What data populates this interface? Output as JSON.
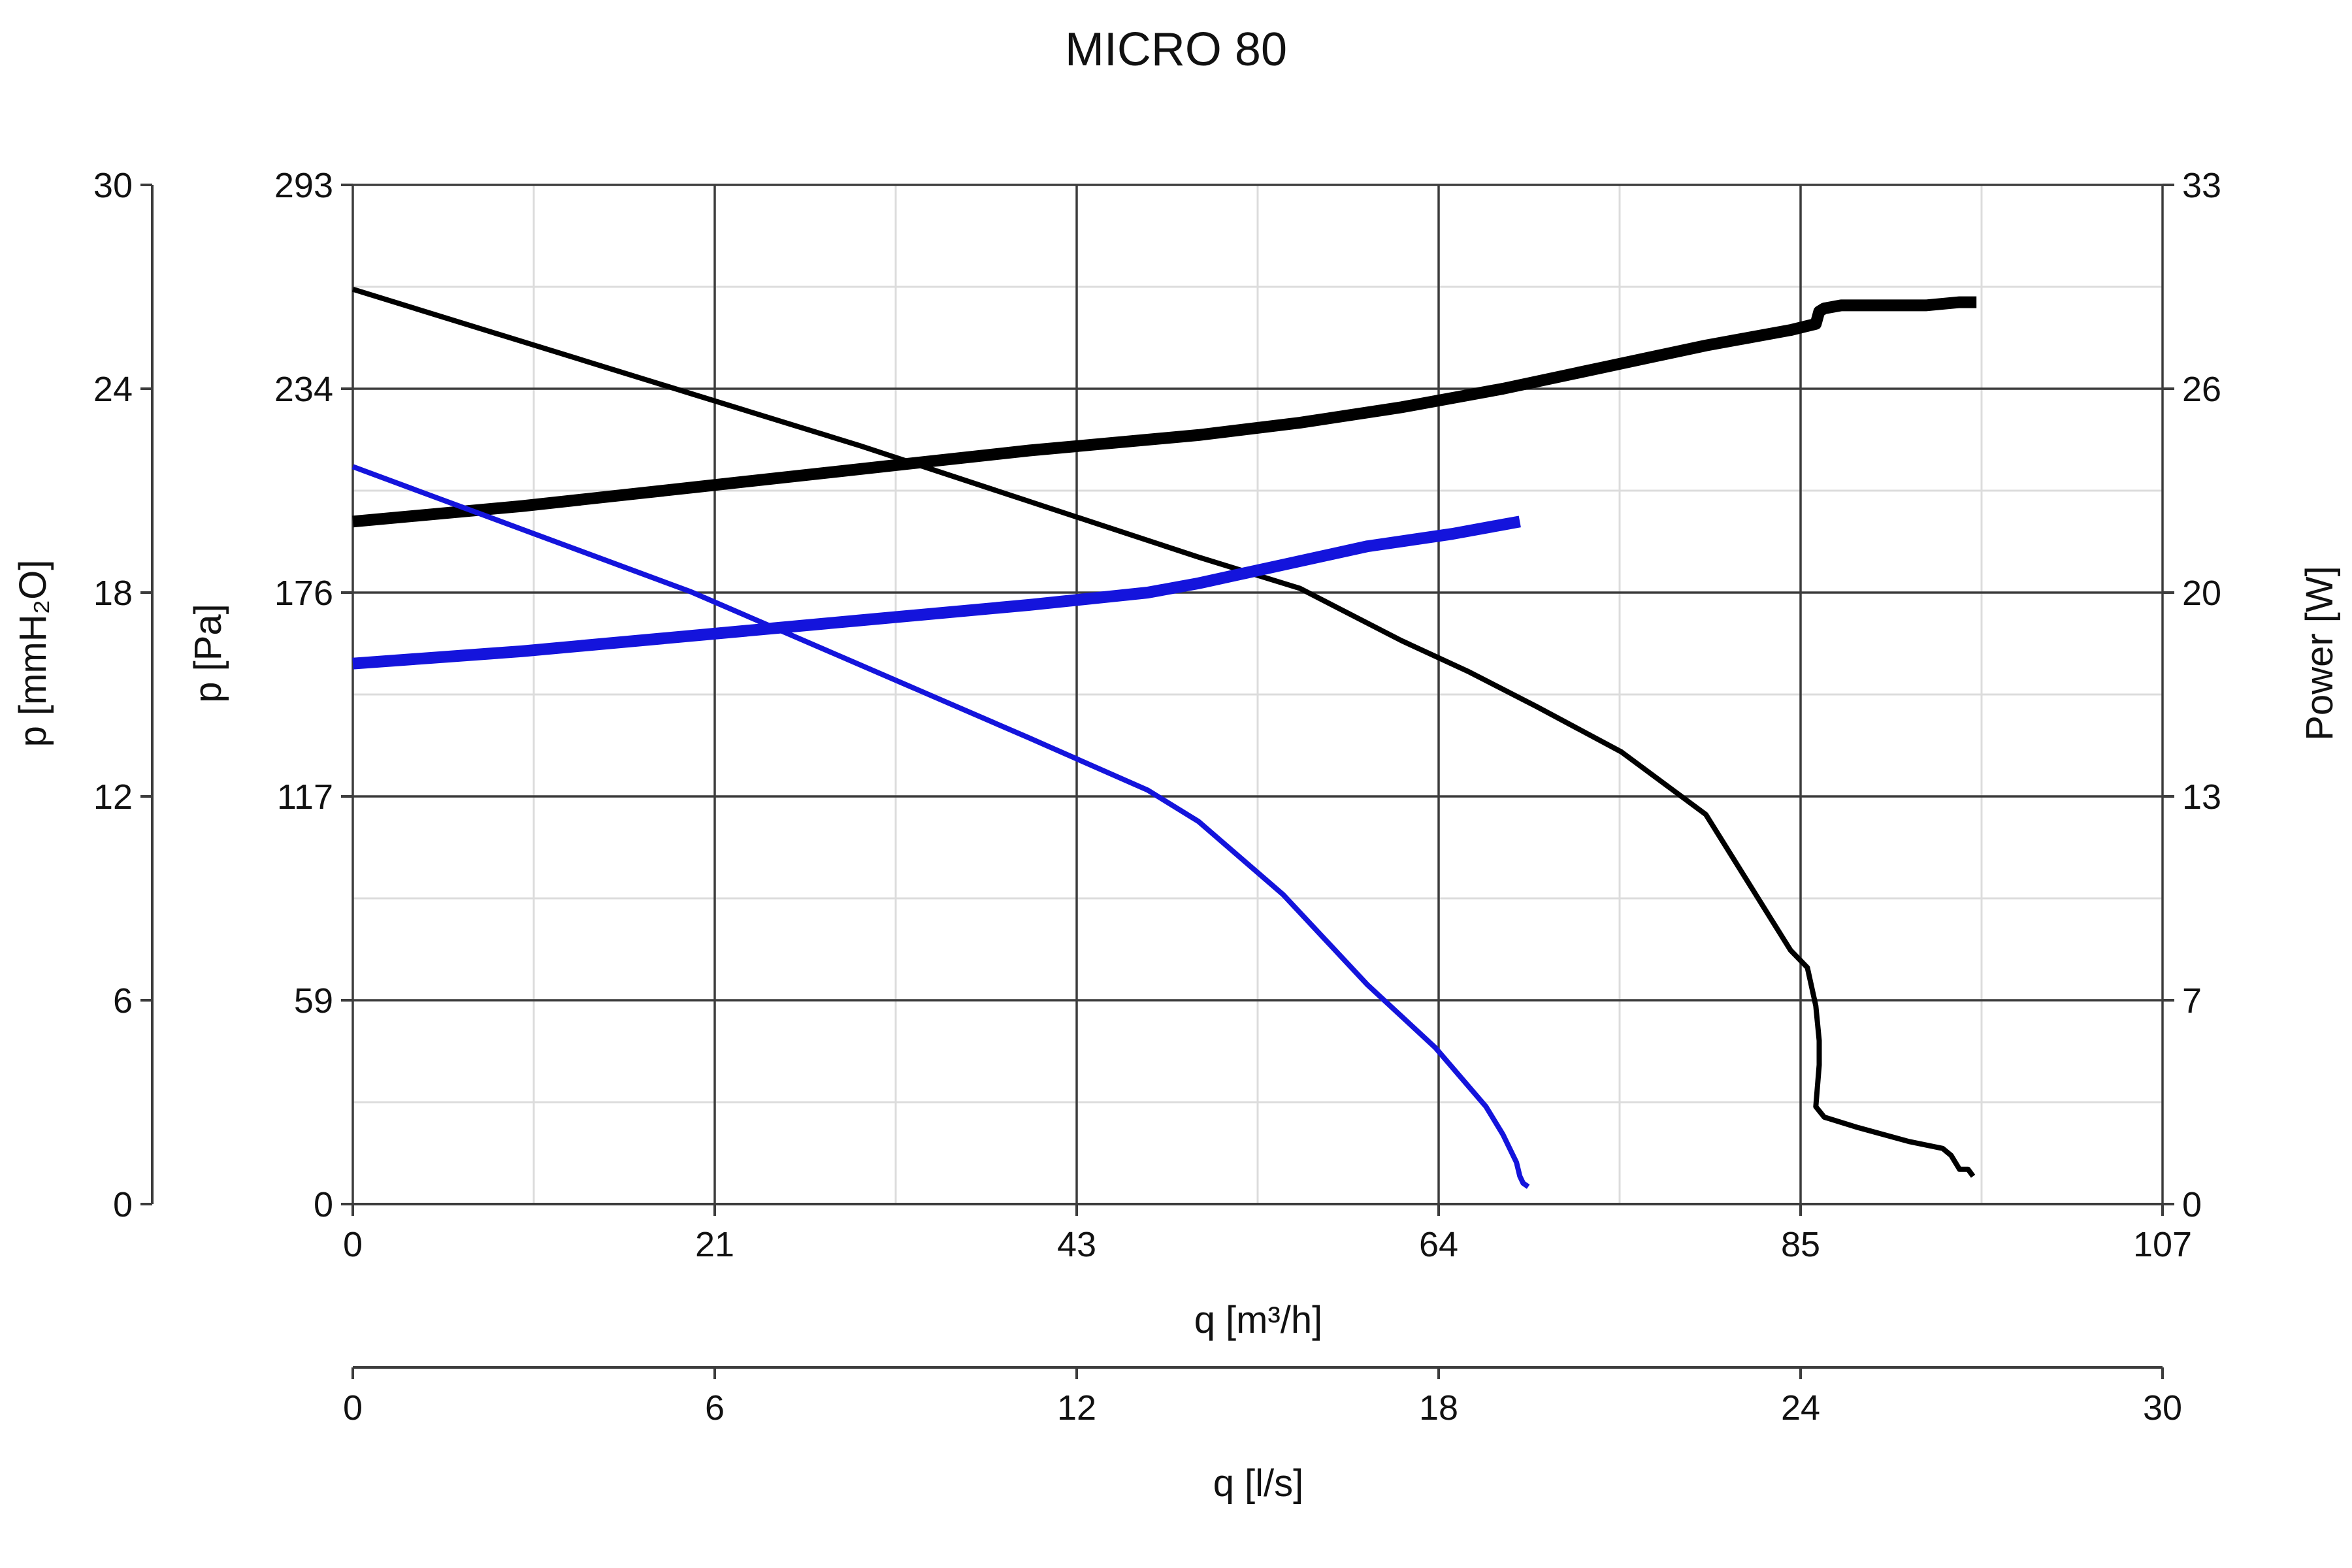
{
  "chart_data": {
    "type": "line",
    "title": "MICRO 80",
    "x_axis": {
      "label": "q [m³/h]",
      "range": [
        0,
        107
      ],
      "ticks": [
        "0",
        "21",
        "43",
        "64",
        "85",
        "107"
      ],
      "tick_values": [
        0,
        21.4,
        42.8,
        64.2,
        85.6,
        107
      ]
    },
    "x2_axis": {
      "label": "q [l/s]",
      "range": [
        0,
        30
      ],
      "ticks": [
        "0",
        "6",
        "12",
        "18",
        "24",
        "30"
      ],
      "tick_values": [
        0,
        6,
        12,
        18,
        24,
        30
      ]
    },
    "y_axis": {
      "label": "p [Pa]",
      "range": [
        0,
        293
      ],
      "ticks": [
        "0",
        "59",
        "117",
        "176",
        "234",
        "293"
      ],
      "tick_values": [
        0,
        58.6,
        117.2,
        175.8,
        234.4,
        293
      ]
    },
    "y2_axis": {
      "label": "p [mmH₂O]",
      "range": [
        0,
        30
      ],
      "ticks": [
        "0",
        "6",
        "12",
        "18",
        "24",
        "30"
      ],
      "tick_values": [
        0,
        6,
        12,
        18,
        24,
        30
      ]
    },
    "y3_axis": {
      "label": "Power [W]",
      "range": [
        0,
        33
      ],
      "ticks": [
        "0",
        "7",
        "13",
        "20",
        "26",
        "33"
      ],
      "tick_values": [
        0,
        6.6,
        13.2,
        19.8,
        26.4,
        33
      ]
    },
    "grid": true,
    "series": [
      {
        "color": "#000000",
        "axis": "pressure",
        "width": "thin",
        "x": [
          0,
          10,
          20,
          30,
          40,
          50,
          56,
          62,
          66,
          70,
          75,
          80,
          85,
          86,
          86.5,
          86.7,
          86.7,
          86.5,
          87,
          89,
          92,
          94,
          94.5,
          95,
          95.5,
          95.8
        ],
        "y": [
          263,
          248,
          233,
          218,
          202,
          186,
          177,
          162,
          153,
          143,
          130,
          112,
          73,
          68,
          57,
          47,
          40,
          28,
          25,
          22,
          18,
          16,
          14,
          10,
          10,
          8
        ]
      },
      {
        "color": "#000000",
        "axis": "power",
        "width": "thick",
        "x": [
          0,
          10,
          20,
          30,
          40,
          50,
          56,
          62,
          68,
          74,
          80,
          85,
          86.5,
          86.7,
          87,
          88,
          90,
          93,
          95,
          96
        ],
        "y": [
          22.1,
          22.6,
          23.2,
          23.8,
          24.4,
          24.9,
          25.3,
          25.8,
          26.4,
          27.1,
          27.8,
          28.3,
          28.5,
          28.9,
          29.0,
          29.1,
          29.1,
          29.1,
          29.2,
          29.2
        ]
      },
      {
        "color": "#1414dc",
        "axis": "pressure",
        "width": "thin",
        "x": [
          0,
          10,
          20,
          30,
          40,
          47,
          50,
          55,
          60,
          64,
          67,
          68,
          68.8,
          69,
          69.2,
          69.5
        ],
        "y": [
          212,
          194,
          176,
          155,
          134,
          119,
          110,
          89,
          63,
          45,
          28,
          20,
          12,
          8,
          6,
          5
        ]
      },
      {
        "color": "#1414dc",
        "axis": "power",
        "width": "thick",
        "x": [
          0,
          10,
          20,
          30,
          40,
          47,
          50,
          55,
          60,
          65,
          68,
          69
        ],
        "y": [
          17.5,
          17.9,
          18.4,
          18.9,
          19.4,
          19.8,
          20.1,
          20.7,
          21.3,
          21.7,
          22.0,
          22.1
        ]
      }
    ]
  }
}
